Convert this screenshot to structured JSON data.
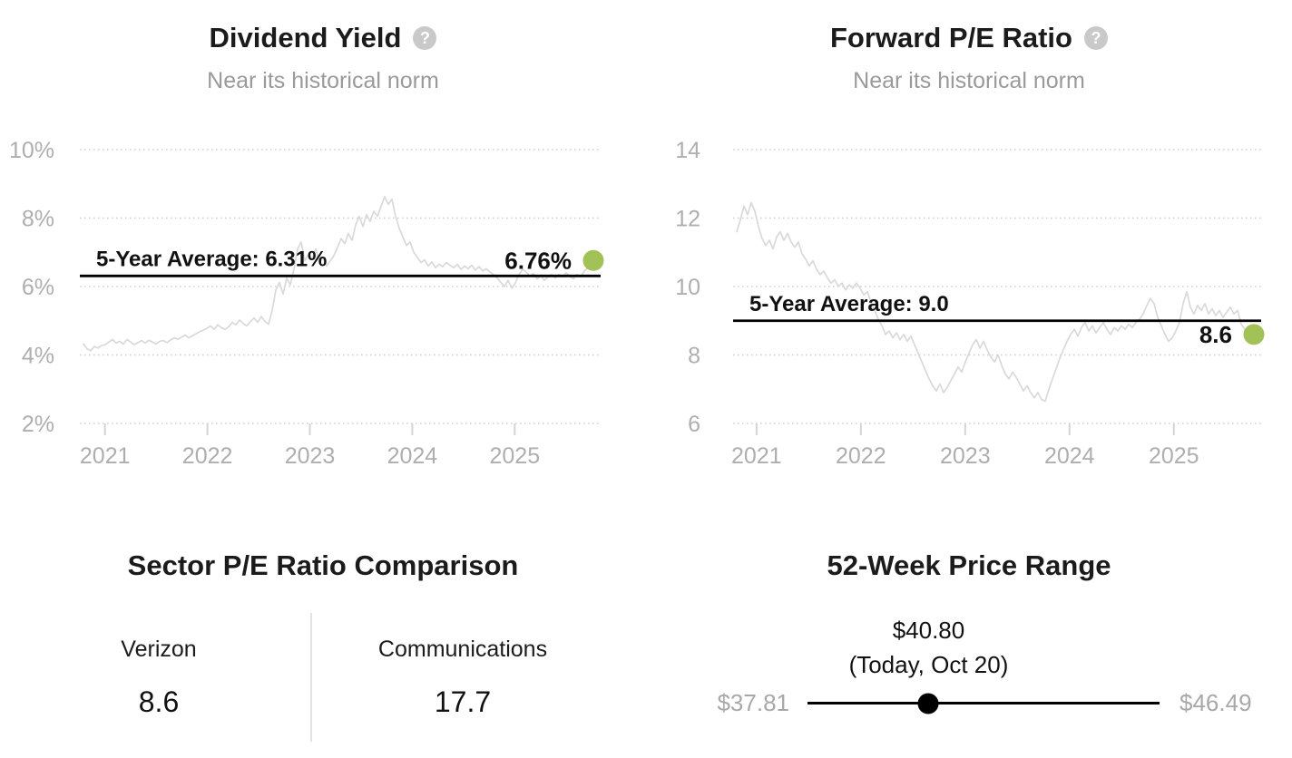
{
  "chart_data": [
    {
      "type": "line",
      "title": "Dividend Yield",
      "subtitle": "Near its historical norm",
      "help_icon": "question-mark",
      "ylim": [
        2,
        10
      ],
      "yticks": [
        {
          "value": 10,
          "label": "10%"
        },
        {
          "value": 8,
          "label": "8%"
        },
        {
          "value": 6,
          "label": "6%"
        },
        {
          "value": 4,
          "label": "4%"
        },
        {
          "value": 2,
          "label": "2%"
        }
      ],
      "xticks": [
        {
          "year": 2021,
          "label": "2021"
        },
        {
          "year": 2022,
          "label": "2022"
        },
        {
          "year": 2023,
          "label": "2023"
        },
        {
          "year": 2024,
          "label": "2024"
        },
        {
          "year": 2025,
          "label": "2025"
        }
      ],
      "x_start_year": 2020.79,
      "x_end_year": 2025.75,
      "grid": true,
      "legend": "none",
      "average": {
        "value": 6.31,
        "label": "5-Year Average: 6.31%"
      },
      "current": {
        "value": 6.76,
        "label": "6.76%"
      },
      "series_color": "#d9d9d9",
      "dot_color": "#a2c157",
      "values": [
        4.32,
        4.18,
        4.12,
        4.25,
        4.2,
        4.28,
        4.3,
        4.38,
        4.45,
        4.35,
        4.4,
        4.32,
        4.45,
        4.38,
        4.3,
        4.36,
        4.42,
        4.35,
        4.43,
        4.38,
        4.32,
        4.4,
        4.42,
        4.36,
        4.44,
        4.5,
        4.46,
        4.52,
        4.58,
        4.5,
        4.56,
        4.62,
        4.68,
        4.72,
        4.78,
        4.85,
        4.75,
        4.88,
        4.8,
        4.75,
        4.82,
        4.95,
        4.88,
        5.02,
        4.92,
        4.85,
        4.98,
        5.08,
        4.95,
        5.12,
        4.98,
        4.9,
        5.3,
        5.9,
        6.12,
        5.78,
        6.25,
        6.05,
        6.5,
        7.1,
        7.3,
        6.75,
        6.95,
        6.8,
        7.1,
        6.7,
        6.85,
        6.6,
        6.75,
        6.9,
        7.15,
        7.4,
        7.25,
        7.55,
        7.35,
        7.8,
        8.05,
        7.75,
        8.1,
        7.9,
        8.2,
        8.05,
        8.35,
        8.62,
        8.4,
        8.55,
        8.05,
        7.7,
        7.45,
        7.2,
        7.3,
        7.0,
        6.85,
        6.7,
        6.78,
        6.6,
        6.72,
        6.55,
        6.65,
        6.58,
        6.7,
        6.62,
        6.55,
        6.65,
        6.5,
        6.6,
        6.52,
        6.62,
        6.48,
        6.58,
        6.45,
        6.52,
        6.42,
        6.35,
        6.25,
        6.12,
        6.0,
        6.18,
        5.95,
        6.1,
        6.35,
        6.5,
        6.42,
        6.3,
        6.38,
        6.22,
        6.32,
        6.18,
        6.28,
        6.35,
        6.25,
        6.35,
        6.28,
        6.4,
        6.3,
        6.22,
        6.35,
        6.28,
        6.45,
        6.55,
        6.76
      ]
    },
    {
      "type": "line",
      "title": "Forward P/E Ratio",
      "subtitle": "Near its historical norm",
      "help_icon": "question-mark",
      "ylim": [
        6,
        14
      ],
      "yticks": [
        {
          "value": 14,
          "label": "14"
        },
        {
          "value": 12,
          "label": "12"
        },
        {
          "value": 10,
          "label": "10"
        },
        {
          "value": 8,
          "label": "8"
        },
        {
          "value": 6,
          "label": "6"
        }
      ],
      "xticks": [
        {
          "year": 2021,
          "label": "2021"
        },
        {
          "year": 2022,
          "label": "2022"
        },
        {
          "year": 2023,
          "label": "2023"
        },
        {
          "year": 2024,
          "label": "2024"
        },
        {
          "year": 2025,
          "label": "2025"
        }
      ],
      "x_start_year": 2020.81,
      "x_end_year": 2025.75,
      "grid": true,
      "legend": "none",
      "average": {
        "value": 9.0,
        "label": "5-Year Average: 9.0"
      },
      "current": {
        "value": 8.6,
        "label": "8.6"
      },
      "series_color": "#d9d9d9",
      "dot_color": "#a2c157",
      "values": [
        11.6,
        11.95,
        12.35,
        12.1,
        12.45,
        12.2,
        11.75,
        11.4,
        11.2,
        11.35,
        11.1,
        11.45,
        11.6,
        11.35,
        11.55,
        11.3,
        11.15,
        11.3,
        10.95,
        10.8,
        10.6,
        10.75,
        10.5,
        10.35,
        10.45,
        10.25,
        10.1,
        10.2,
        10.0,
        10.1,
        9.9,
        10.05,
        9.95,
        10.1,
        9.95,
        9.75,
        9.85,
        9.55,
        9.3,
        9.05,
        8.85,
        8.6,
        8.7,
        8.5,
        8.65,
        8.45,
        8.6,
        8.4,
        8.55,
        8.3,
        8.05,
        7.8,
        7.55,
        7.3,
        7.1,
        6.95,
        7.15,
        6.9,
        7.05,
        7.25,
        7.45,
        7.65,
        7.5,
        7.8,
        8.05,
        8.3,
        8.45,
        8.2,
        8.4,
        8.15,
        7.95,
        7.8,
        8.0,
        7.7,
        7.45,
        7.3,
        7.5,
        7.35,
        7.15,
        6.95,
        7.1,
        6.9,
        6.75,
        6.9,
        6.7,
        6.65,
        7.0,
        7.3,
        7.6,
        7.9,
        8.15,
        8.4,
        8.6,
        8.75,
        8.55,
        8.8,
        8.95,
        8.7,
        8.85,
        8.65,
        8.8,
        8.95,
        8.75,
        8.6,
        8.8,
        8.7,
        8.85,
        8.75,
        8.9,
        8.8,
        8.95,
        9.05,
        9.2,
        9.45,
        9.65,
        9.5,
        9.1,
        8.85,
        8.6,
        8.4,
        8.5,
        8.7,
        8.95,
        9.5,
        9.85,
        9.4,
        9.2,
        9.45,
        9.3,
        9.5,
        9.2,
        9.35,
        9.15,
        9.3,
        9.1,
        9.25,
        9.4,
        9.2,
        9.3,
        8.9,
        8.75,
        8.65,
        8.6
      ]
    }
  ],
  "panels": {
    "sector": {
      "title": "Sector P/E Ratio Comparison",
      "columns": [
        {
          "label": "Verizon",
          "value": "8.6"
        },
        {
          "label": "Communications",
          "value": "17.7"
        }
      ]
    },
    "price_range": {
      "title": "52-Week Price Range",
      "current_price": "$40.80",
      "current_note": "(Today, Oct 20)",
      "low": "$37.81",
      "high": "$46.49",
      "position_pct": 34.4
    }
  }
}
